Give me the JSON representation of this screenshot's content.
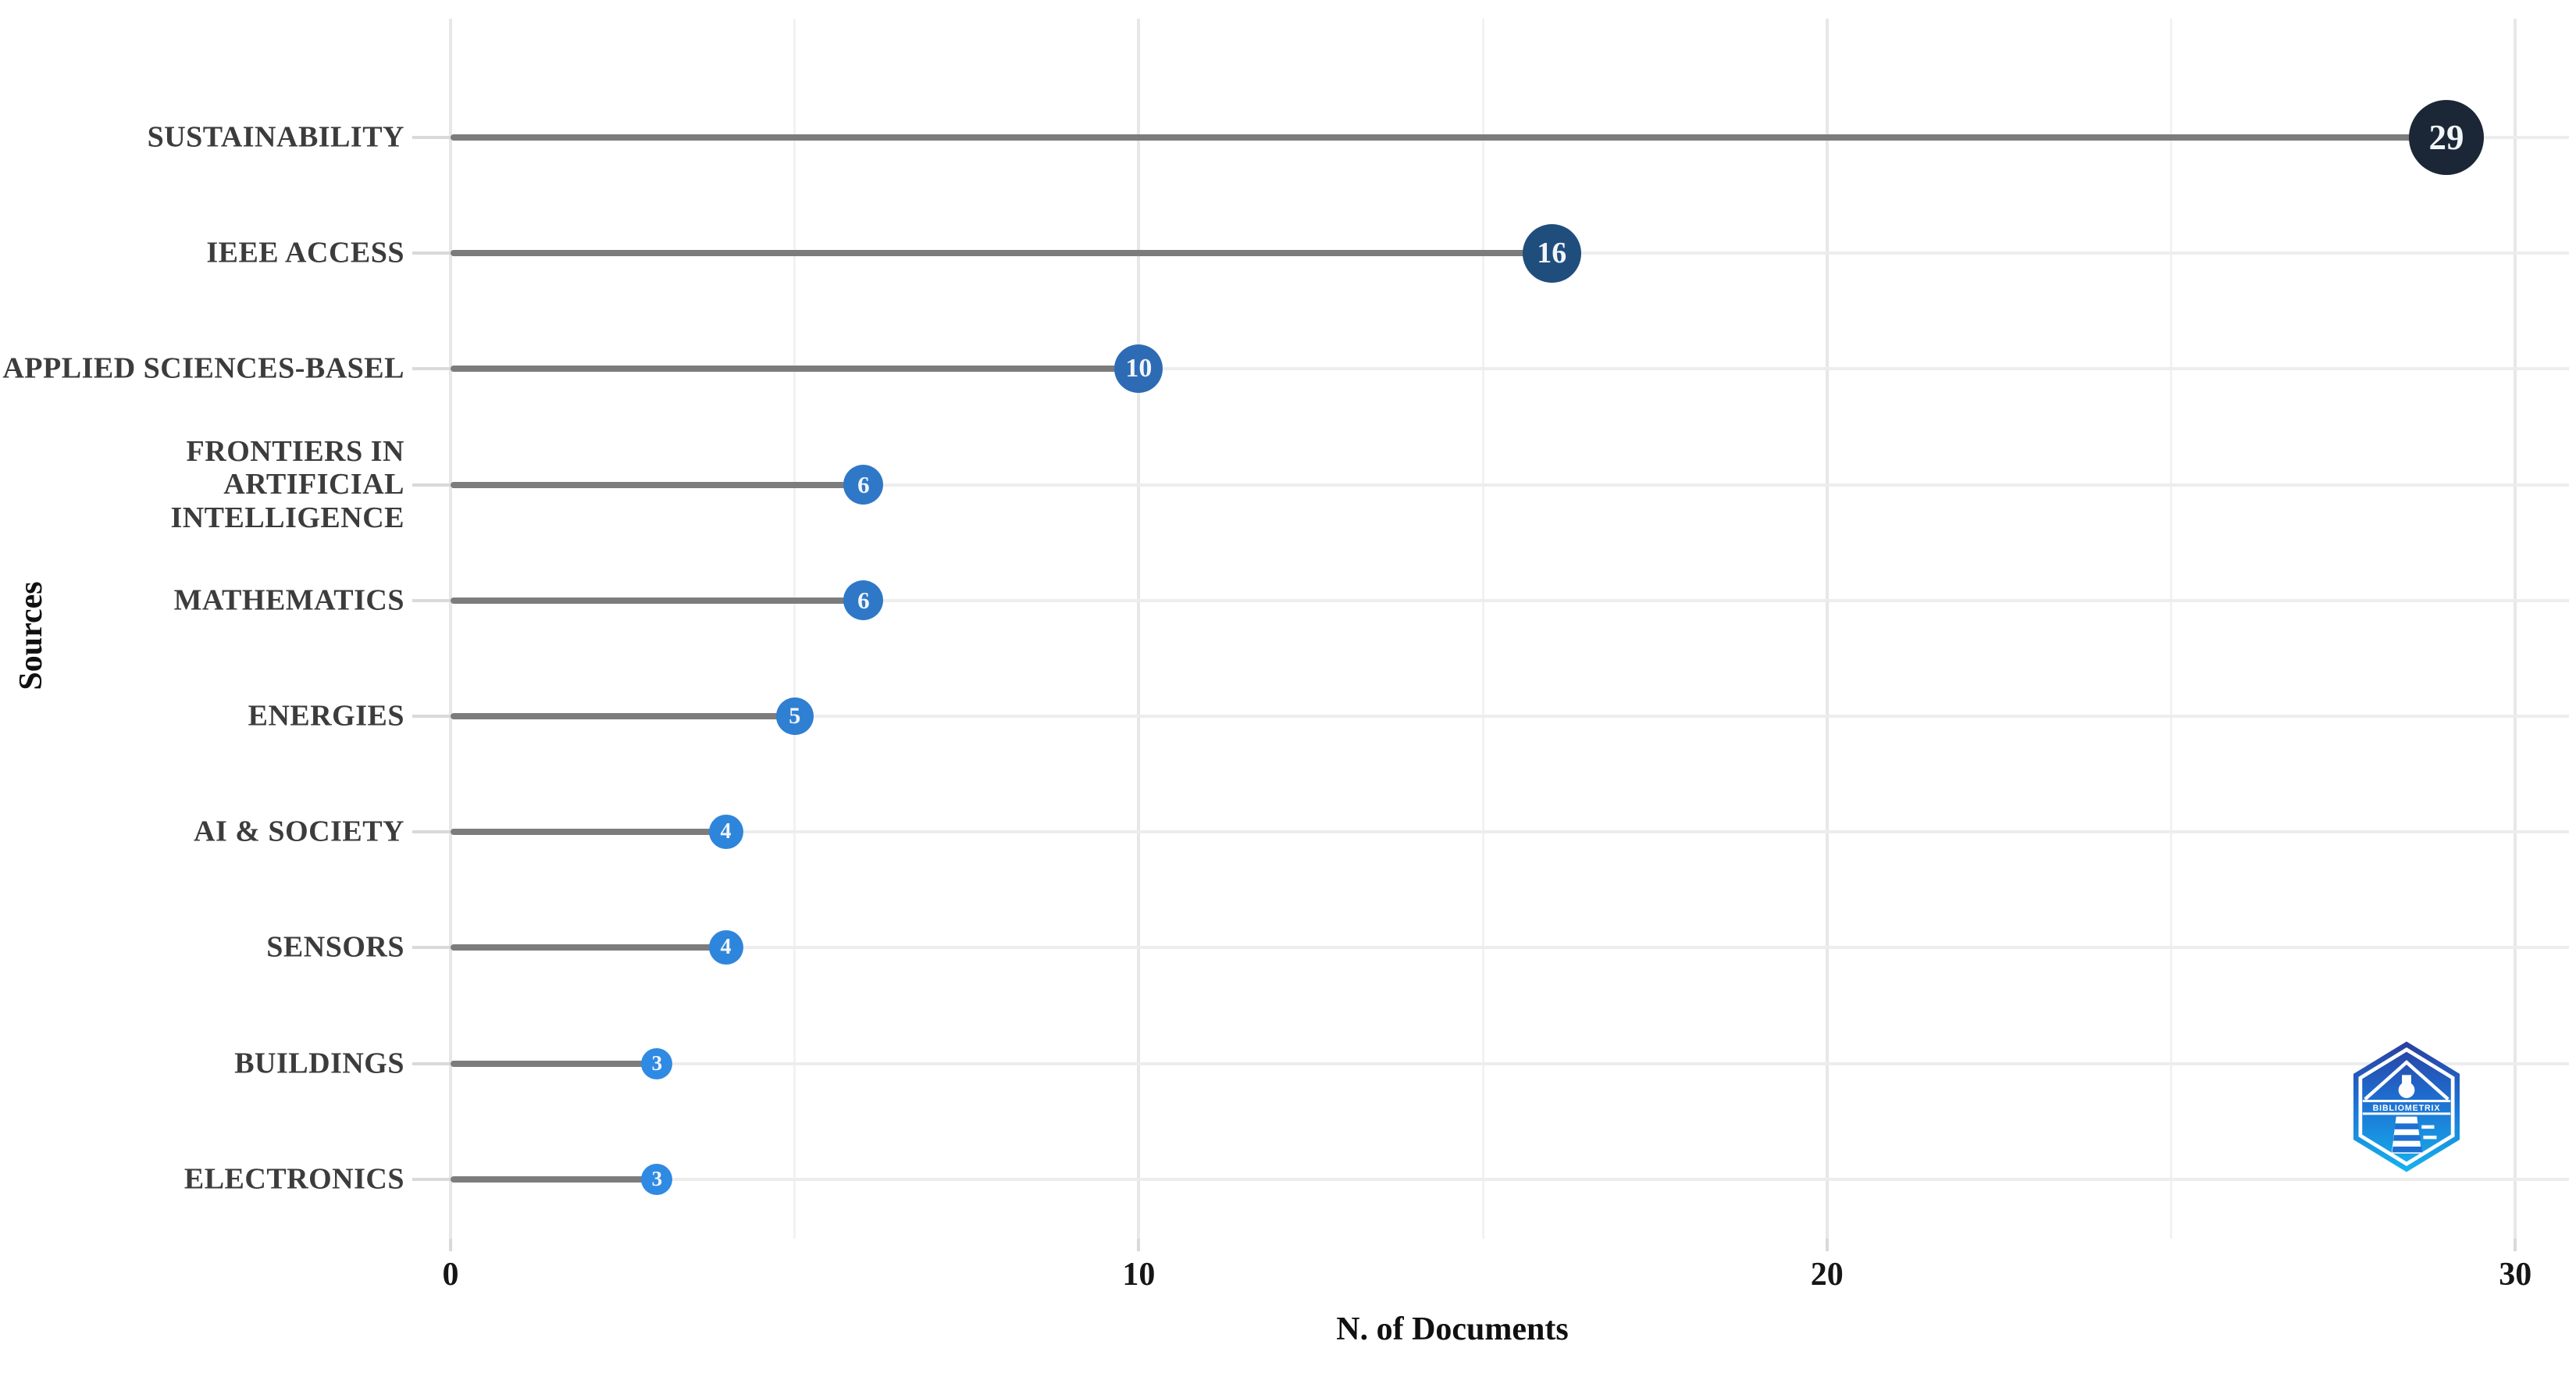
{
  "chart_data": {
    "type": "scatter",
    "style": "lollipop-horizontal",
    "title": "",
    "xlabel": "N. of Documents",
    "ylabel": "Sources",
    "xlim": [
      0,
      30
    ],
    "x_major_ticks": [
      0,
      10,
      20,
      30
    ],
    "x_major_tick_labels": [
      "0",
      "10",
      "20",
      "30"
    ],
    "x_minor_gridlines": [
      5,
      15,
      25
    ],
    "grid": true,
    "legend": "none",
    "categories": [
      "SUSTAINABILITY",
      "IEEE ACCESS",
      "APPLIED SCIENCES-BASEL",
      "FRONTIERS IN ARTIFICIAL\nINTELLIGENCE",
      "MATHEMATICS",
      "ENERGIES",
      "AI & SOCIETY",
      "SENSORS",
      "BUILDINGS",
      "ELECTRONICS"
    ],
    "values": [
      29,
      16,
      10,
      6,
      6,
      5,
      4,
      4,
      3,
      3
    ],
    "value_labels": [
      "29",
      "16",
      "10",
      "6",
      "6",
      "5",
      "4",
      "4",
      "3",
      "3"
    ],
    "point_colors": [
      "#1b2736",
      "#1f4e7d",
      "#2d6cb4",
      "#2f78c8",
      "#2f78c8",
      "#2f7fd2",
      "#2e85dc",
      "#2e85dc",
      "#2f8ae4",
      "#2f8ae4"
    ],
    "stem_color": "#7c7c7c",
    "gridline_color_major": "#e7e7e7",
    "gridline_color_minor": "#f2f2f2",
    "row_gridline_color": "#ededed",
    "background_color": "#ffffff"
  },
  "branding": {
    "logo_name": "bibliometrix-logo",
    "logo_text": "BIBLIOMETRIX",
    "logo_color_top": "#2a3f9f",
    "logo_color_bottom": "#15b3ee"
  }
}
